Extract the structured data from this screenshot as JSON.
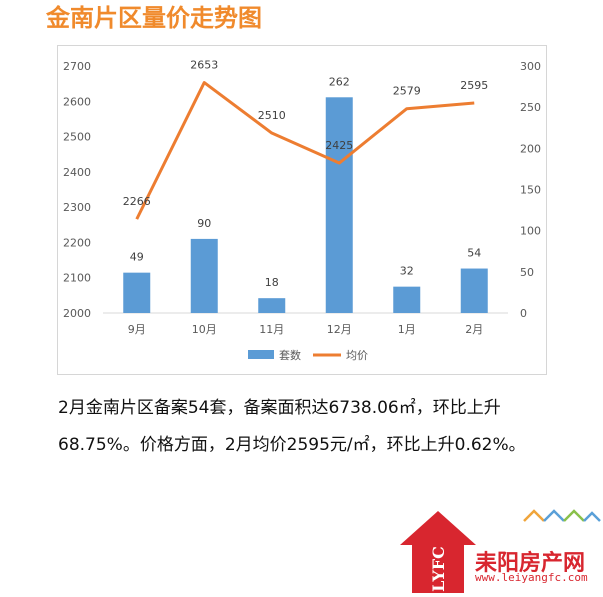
{
  "title": "金南片区量价走势图",
  "summary": "2月金南片区备案54套，备案面积达6738.06㎡，环比上升68.75%。价格方面，2月均价2595元/㎡，环比上升0.62%。",
  "logo": {
    "letters": "LYFC",
    "name": "耒阳房产网",
    "url": "www.leiyangfc.com",
    "color": "#d8262f"
  },
  "chart_data": {
    "type": "bar+line",
    "categories": [
      "9月",
      "10月",
      "11月",
      "12月",
      "1月",
      "2月"
    ],
    "series": [
      {
        "name": "套数",
        "type": "bar",
        "axis": "right",
        "values": [
          49,
          90,
          18,
          262,
          32,
          54
        ],
        "color": "#5b9bd5"
      },
      {
        "name": "均价",
        "type": "line",
        "axis": "left",
        "values": [
          2266,
          2653,
          2510,
          2425,
          2579,
          2595
        ],
        "color": "#ed7d31"
      }
    ],
    "left_axis": {
      "min": 2000,
      "max": 2700,
      "step": 100
    },
    "right_axis": {
      "min": 0,
      "max": 300,
      "step": 50
    },
    "legend": "bottom",
    "grid": false
  }
}
